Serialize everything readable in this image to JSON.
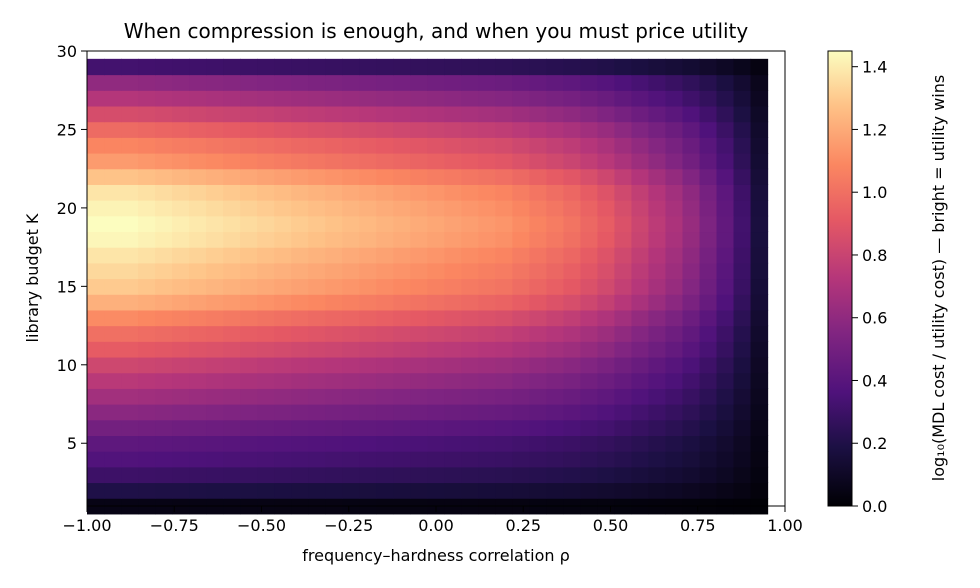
{
  "chart_data": {
    "type": "heatmap",
    "title": "When compression is enough, and when you must price utility",
    "xlabel": "frequency–hardness correlation  ρ",
    "ylabel": "library budget  K",
    "xlim": [
      -1.0,
      1.0
    ],
    "ylim": [
      1,
      30
    ],
    "xticks": [
      "−1.00",
      "−0.75",
      "−0.50",
      "−0.25",
      "0.00",
      "0.25",
      "0.50",
      "0.75",
      "1.00"
    ],
    "yticks": [
      "5",
      "10",
      "15",
      "20",
      "25",
      "30"
    ],
    "colorbar": {
      "label": "log₁₀(MDL cost / utility cost)   — bright = utility wins",
      "range": [
        0.0,
        1.45
      ],
      "ticks": [
        "0.0",
        "0.2",
        "0.4",
        "0.6",
        "0.8",
        "1.0",
        "1.2",
        "1.4"
      ],
      "colormap": "magma"
    },
    "grid": {
      "rho_cells": 40,
      "rho_range": [
        -1.0,
        0.95
      ],
      "K_values": [
        1,
        2,
        3,
        4,
        5,
        6,
        7,
        8,
        9,
        10,
        11,
        12,
        13,
        14,
        15,
        16,
        17,
        18,
        19,
        20,
        21,
        22,
        23,
        24,
        25,
        26,
        27,
        28,
        29
      ],
      "K_profile": [
        0.05,
        0.2,
        0.3,
        0.37,
        0.42,
        0.5,
        0.58,
        0.66,
        0.74,
        0.82,
        0.92,
        1.0,
        1.1,
        1.22,
        1.3,
        1.34,
        1.38,
        1.43,
        1.45,
        1.42,
        1.38,
        1.28,
        1.15,
        1.08,
        0.98,
        0.85,
        0.72,
        0.6,
        0.32
      ],
      "rho_decay": [
        1.0,
        1.0,
        1.0,
        0.99,
        0.98,
        0.97,
        0.96,
        0.95,
        0.94,
        0.93,
        0.92,
        0.91,
        0.9,
        0.89,
        0.88,
        0.87,
        0.86,
        0.85,
        0.84,
        0.83,
        0.82,
        0.81,
        0.8,
        0.79,
        0.78,
        0.76,
        0.74,
        0.72,
        0.7,
        0.67,
        0.64,
        0.6,
        0.56,
        0.52,
        0.48,
        0.43,
        0.37,
        0.3,
        0.22,
        0.12
      ]
    }
  }
}
